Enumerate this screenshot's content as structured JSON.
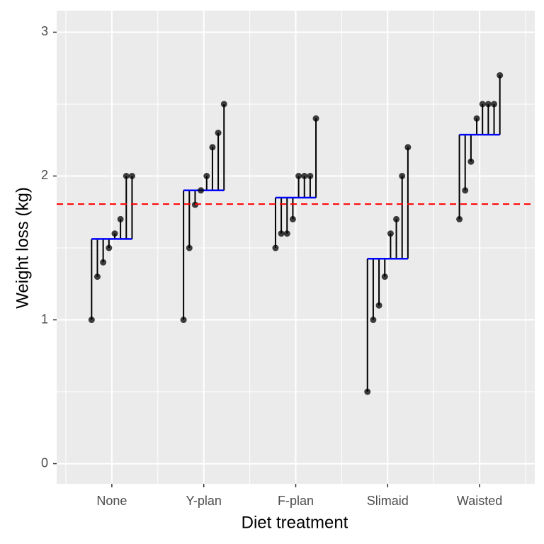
{
  "chart_data": {
    "type": "strip",
    "x_label": "Diet treatment",
    "y_label": "Weight loss (kg)",
    "categories": [
      "None",
      "Y-plan",
      "F-plan",
      "Slimaid",
      "Waisted"
    ],
    "values": [
      [
        1.0,
        1.3,
        1.4,
        1.5,
        1.6,
        1.7,
        2.0,
        2.0
      ],
      [
        1.0,
        1.5,
        1.8,
        1.9,
        2.0,
        2.2,
        2.3,
        2.5
      ],
      [
        1.5,
        1.6,
        1.6,
        1.7,
        2.0,
        2.0,
        2.0,
        2.4
      ],
      [
        0.5,
        1.0,
        1.1,
        1.3,
        1.6,
        1.7,
        2.0,
        2.2
      ],
      [
        1.7,
        1.9,
        2.1,
        2.4,
        2.5,
        2.5,
        2.5,
        2.7
      ]
    ],
    "means": [
      1.5625,
      1.9,
      1.85,
      1.425,
      2.2875
    ],
    "overall_mean": 1.805,
    "ylim": [
      -0.14,
      3.15
    ],
    "yticks": [
      0,
      1,
      2,
      3
    ],
    "grid": true,
    "point_color": "#000000",
    "mean_color": "#0000ff",
    "overall_mean_color": "#ff0000"
  }
}
